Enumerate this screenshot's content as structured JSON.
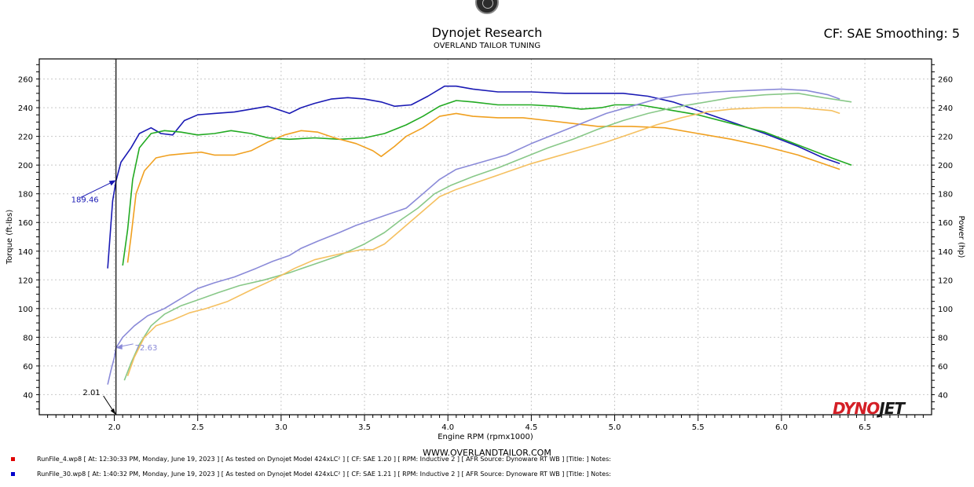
{
  "header": {
    "title": "Dynojet Research",
    "subtitle": "OVERLAND TAILOR TUNING",
    "settings": "CF: SAE Smoothing: 5"
  },
  "footer": {
    "website": "WWW.OVERLANDTAILOR.COM",
    "brand_left": "DYNO",
    "brand_right": "JET",
    "runs": [
      {
        "color": "#e00000",
        "text": "RunFile_4.wp8 [ At: 12:30:33 PM, Monday, June 19, 2023 ] [ As tested on Dynojet Model 424xLC² ] [ CF: SAE 1.20 ] [ RPM: Inductive 2 ] [ AFR Source: Dynoware RT WB ] [Title: ]  Notes:"
      },
      {
        "color": "#0000cc",
        "text": "RunFile_30.wp8 [ At: 1:40:32 PM, Monday, June 19, 2023 ] [ As tested on Dynojet Model 424xLC² ] [ CF: SAE 1.21 ] [ RPM: Inductive 2 ] [ AFR Source: Dynoware RT WB ] [Title: ]  Notes:"
      }
    ]
  },
  "chart_data": {
    "type": "line",
    "xlabel": "Engine RPM (rpmx1000)",
    "ylabel_left": "Torque (ft-lbs)",
    "ylabel_right": "Power (hp)",
    "xlim": [
      1.55,
      6.9
    ],
    "ylim": [
      26,
      274
    ],
    "x_ticks": [
      "2.0",
      "2.5",
      "3.0",
      "3.5",
      "4.0",
      "4.5",
      "5.0",
      "5.5",
      "6.0",
      "6.5"
    ],
    "y_ticks": [
      "40",
      "60",
      "80",
      "100",
      "120",
      "140",
      "160",
      "180",
      "200",
      "220",
      "240",
      "260"
    ],
    "grid": true,
    "cursor": {
      "x": 2.01,
      "x_label": "2.01",
      "torque_label": "189.46",
      "torque_value": 189.46,
      "power_label": "72.63",
      "power_value": 72.63
    },
    "series": [
      {
        "color": "#1a1ab4",
        "points": [
          [
            1.96,
            128
          ],
          [
            1.99,
            175
          ],
          [
            2.01,
            189
          ],
          [
            2.04,
            202
          ],
          [
            2.1,
            212
          ],
          [
            2.15,
            222
          ],
          [
            2.22,
            226
          ],
          [
            2.28,
            222
          ],
          [
            2.35,
            221
          ],
          [
            2.42,
            231
          ],
          [
            2.5,
            235
          ],
          [
            2.6,
            236
          ],
          [
            2.72,
            237
          ],
          [
            2.82,
            239
          ],
          [
            2.92,
            241
          ],
          [
            3.0,
            238
          ],
          [
            3.05,
            236
          ],
          [
            3.12,
            240
          ],
          [
            3.2,
            243
          ],
          [
            3.3,
            246
          ],
          [
            3.4,
            247
          ],
          [
            3.5,
            246
          ],
          [
            3.6,
            244
          ],
          [
            3.68,
            241
          ],
          [
            3.78,
            242
          ],
          [
            3.88,
            248
          ],
          [
            3.98,
            255
          ],
          [
            4.05,
            255
          ],
          [
            4.15,
            253
          ],
          [
            4.3,
            251
          ],
          [
            4.5,
            251
          ],
          [
            4.7,
            250
          ],
          [
            4.9,
            250
          ],
          [
            5.05,
            250
          ],
          [
            5.2,
            248
          ],
          [
            5.35,
            244
          ],
          [
            5.5,
            238
          ],
          [
            5.7,
            230
          ],
          [
            5.9,
            222
          ],
          [
            6.1,
            213
          ],
          [
            6.25,
            205
          ],
          [
            6.35,
            201
          ]
        ]
      },
      {
        "color": "#22aa22",
        "points": [
          [
            2.05,
            130
          ],
          [
            2.08,
            155
          ],
          [
            2.11,
            190
          ],
          [
            2.15,
            212
          ],
          [
            2.22,
            222
          ],
          [
            2.3,
            224
          ],
          [
            2.4,
            223
          ],
          [
            2.5,
            221
          ],
          [
            2.6,
            222
          ],
          [
            2.7,
            224
          ],
          [
            2.82,
            222
          ],
          [
            2.92,
            219
          ],
          [
            3.05,
            218
          ],
          [
            3.2,
            219
          ],
          [
            3.35,
            218
          ],
          [
            3.5,
            219
          ],
          [
            3.62,
            222
          ],
          [
            3.75,
            228
          ],
          [
            3.85,
            234
          ],
          [
            3.95,
            241
          ],
          [
            4.05,
            245
          ],
          [
            4.15,
            244
          ],
          [
            4.3,
            242
          ],
          [
            4.5,
            242
          ],
          [
            4.65,
            241
          ],
          [
            4.8,
            239
          ],
          [
            4.92,
            240
          ],
          [
            5.0,
            242
          ],
          [
            5.15,
            242
          ],
          [
            5.3,
            239
          ],
          [
            5.5,
            235
          ],
          [
            5.7,
            229
          ],
          [
            5.9,
            223
          ],
          [
            6.1,
            214
          ],
          [
            6.3,
            205
          ],
          [
            6.42,
            200
          ]
        ]
      },
      {
        "color": "#f0a020",
        "points": [
          [
            2.08,
            132
          ],
          [
            2.1,
            150
          ],
          [
            2.13,
            180
          ],
          [
            2.18,
            196
          ],
          [
            2.25,
            205
          ],
          [
            2.33,
            207
          ],
          [
            2.42,
            208
          ],
          [
            2.52,
            209
          ],
          [
            2.6,
            207
          ],
          [
            2.72,
            207
          ],
          [
            2.82,
            210
          ],
          [
            2.92,
            216
          ],
          [
            3.02,
            221
          ],
          [
            3.12,
            224
          ],
          [
            3.22,
            223
          ],
          [
            3.32,
            219
          ],
          [
            3.45,
            215
          ],
          [
            3.55,
            210
          ],
          [
            3.6,
            206
          ],
          [
            3.68,
            213
          ],
          [
            3.75,
            220
          ],
          [
            3.85,
            226
          ],
          [
            3.95,
            234
          ],
          [
            4.05,
            236
          ],
          [
            4.15,
            234
          ],
          [
            4.3,
            233
          ],
          [
            4.45,
            233
          ],
          [
            4.6,
            231
          ],
          [
            4.75,
            229
          ],
          [
            4.9,
            227
          ],
          [
            5.1,
            227
          ],
          [
            5.3,
            226
          ],
          [
            5.5,
            222
          ],
          [
            5.7,
            218
          ],
          [
            5.9,
            213
          ],
          [
            6.1,
            207
          ],
          [
            6.3,
            199
          ],
          [
            6.35,
            197
          ]
        ]
      },
      {
        "color": "#8a8ad8",
        "points": [
          [
            1.96,
            47
          ],
          [
            1.98,
            57
          ],
          [
            2.0,
            66
          ],
          [
            2.01,
            72.6
          ],
          [
            2.05,
            80
          ],
          [
            2.12,
            88
          ],
          [
            2.2,
            95
          ],
          [
            2.3,
            100
          ],
          [
            2.4,
            107
          ],
          [
            2.5,
            114
          ],
          [
            2.6,
            118
          ],
          [
            2.72,
            122
          ],
          [
            2.85,
            128
          ],
          [
            2.95,
            133
          ],
          [
            3.05,
            137
          ],
          [
            3.12,
            142
          ],
          [
            3.22,
            147
          ],
          [
            3.35,
            153
          ],
          [
            3.45,
            158
          ],
          [
            3.55,
            162
          ],
          [
            3.65,
            166
          ],
          [
            3.75,
            170
          ],
          [
            3.85,
            180
          ],
          [
            3.95,
            190
          ],
          [
            4.05,
            197
          ],
          [
            4.2,
            202
          ],
          [
            4.35,
            207
          ],
          [
            4.5,
            215
          ],
          [
            4.65,
            222
          ],
          [
            4.8,
            229
          ],
          [
            4.95,
            236
          ],
          [
            5.1,
            241
          ],
          [
            5.25,
            246
          ],
          [
            5.4,
            249
          ],
          [
            5.6,
            251
          ],
          [
            5.8,
            252
          ],
          [
            6.0,
            253
          ],
          [
            6.15,
            252
          ],
          [
            6.28,
            249
          ],
          [
            6.35,
            246
          ]
        ]
      },
      {
        "color": "#88c888",
        "points": [
          [
            2.06,
            50
          ],
          [
            2.1,
            62
          ],
          [
            2.15,
            75
          ],
          [
            2.22,
            88
          ],
          [
            2.3,
            96
          ],
          [
            2.4,
            102
          ],
          [
            2.5,
            106
          ],
          [
            2.62,
            111
          ],
          [
            2.75,
            116
          ],
          [
            2.9,
            120
          ],
          [
            3.05,
            125
          ],
          [
            3.2,
            131
          ],
          [
            3.35,
            137
          ],
          [
            3.5,
            145
          ],
          [
            3.62,
            153
          ],
          [
            3.72,
            162
          ],
          [
            3.82,
            170
          ],
          [
            3.92,
            180
          ],
          [
            4.02,
            186
          ],
          [
            4.15,
            192
          ],
          [
            4.3,
            198
          ],
          [
            4.45,
            205
          ],
          [
            4.6,
            212
          ],
          [
            4.75,
            218
          ],
          [
            4.9,
            225
          ],
          [
            5.05,
            231
          ],
          [
            5.2,
            236
          ],
          [
            5.35,
            240
          ],
          [
            5.5,
            243
          ],
          [
            5.7,
            247
          ],
          [
            5.9,
            249
          ],
          [
            6.1,
            250
          ],
          [
            6.25,
            247
          ],
          [
            6.42,
            244
          ]
        ]
      },
      {
        "color": "#f5c060",
        "points": [
          [
            2.08,
            53
          ],
          [
            2.12,
            66
          ],
          [
            2.18,
            80
          ],
          [
            2.25,
            88
          ],
          [
            2.35,
            92
          ],
          [
            2.45,
            97
          ],
          [
            2.55,
            100
          ],
          [
            2.68,
            105
          ],
          [
            2.82,
            113
          ],
          [
            2.95,
            120
          ],
          [
            3.08,
            128
          ],
          [
            3.2,
            134
          ],
          [
            3.35,
            138
          ],
          [
            3.48,
            141
          ],
          [
            3.55,
            141
          ],
          [
            3.62,
            145
          ],
          [
            3.72,
            155
          ],
          [
            3.85,
            168
          ],
          [
            3.95,
            178
          ],
          [
            4.05,
            183
          ],
          [
            4.2,
            189
          ],
          [
            4.35,
            195
          ],
          [
            4.5,
            201
          ],
          [
            4.65,
            206
          ],
          [
            4.8,
            211
          ],
          [
            4.95,
            216
          ],
          [
            5.1,
            222
          ],
          [
            5.25,
            228
          ],
          [
            5.4,
            233
          ],
          [
            5.55,
            237
          ],
          [
            5.7,
            239
          ],
          [
            5.9,
            240
          ],
          [
            6.1,
            240
          ],
          [
            6.3,
            238
          ],
          [
            6.35,
            236
          ]
        ]
      }
    ]
  }
}
